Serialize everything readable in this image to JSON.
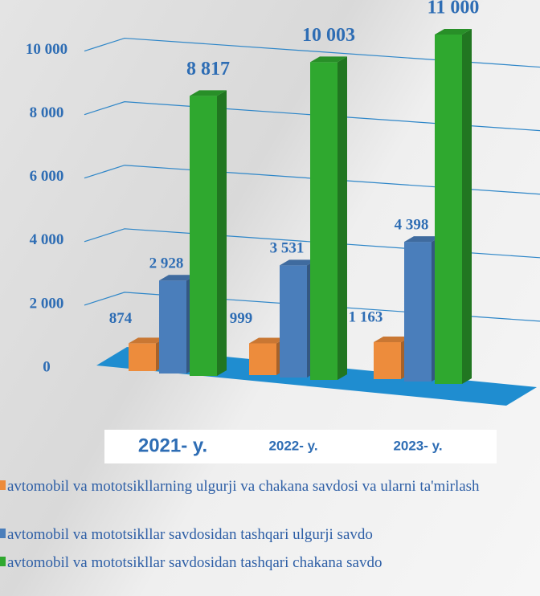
{
  "chart_data": {
    "type": "bar3d",
    "categories": [
      "2021- y.",
      "2022- y.",
      "2023- y."
    ],
    "series": [
      {
        "name": "avtomobil va mototsikllarning ulgurji va chakana savdosi va ularni ta'mirlash",
        "color": "#ed8c3c",
        "values": [
          874,
          999,
          1163
        ],
        "value_labels": [
          "874",
          "999",
          "1 163"
        ]
      },
      {
        "name": "avtomobil va mototsikllar savdosidan tashqari ulgurji savdo",
        "color": "#4a7ebb",
        "values": [
          2928,
          3531,
          4398
        ],
        "value_labels": [
          "2 928",
          "3 531",
          "4 398"
        ]
      },
      {
        "name": "avtomobil va mototsikllar savdosidan tashqari chakana savdo",
        "color": "#2fa82f",
        "values": [
          8817,
          10003,
          11000
        ],
        "value_labels": [
          "8 817",
          "10  003",
          "11 000"
        ]
      }
    ],
    "ylim": [
      0,
      11000
    ],
    "yticks": [
      0,
      {
        "value": 2000,
        "label": "2 000"
      },
      {
        "value": 4000,
        "label": "4 000"
      },
      {
        "value": 6000,
        "label": "6 000"
      },
      {
        "value": 8000,
        "label": "8 000"
      },
      {
        "value": 10000,
        "label": "10 000"
      }
    ],
    "grid": true
  }
}
